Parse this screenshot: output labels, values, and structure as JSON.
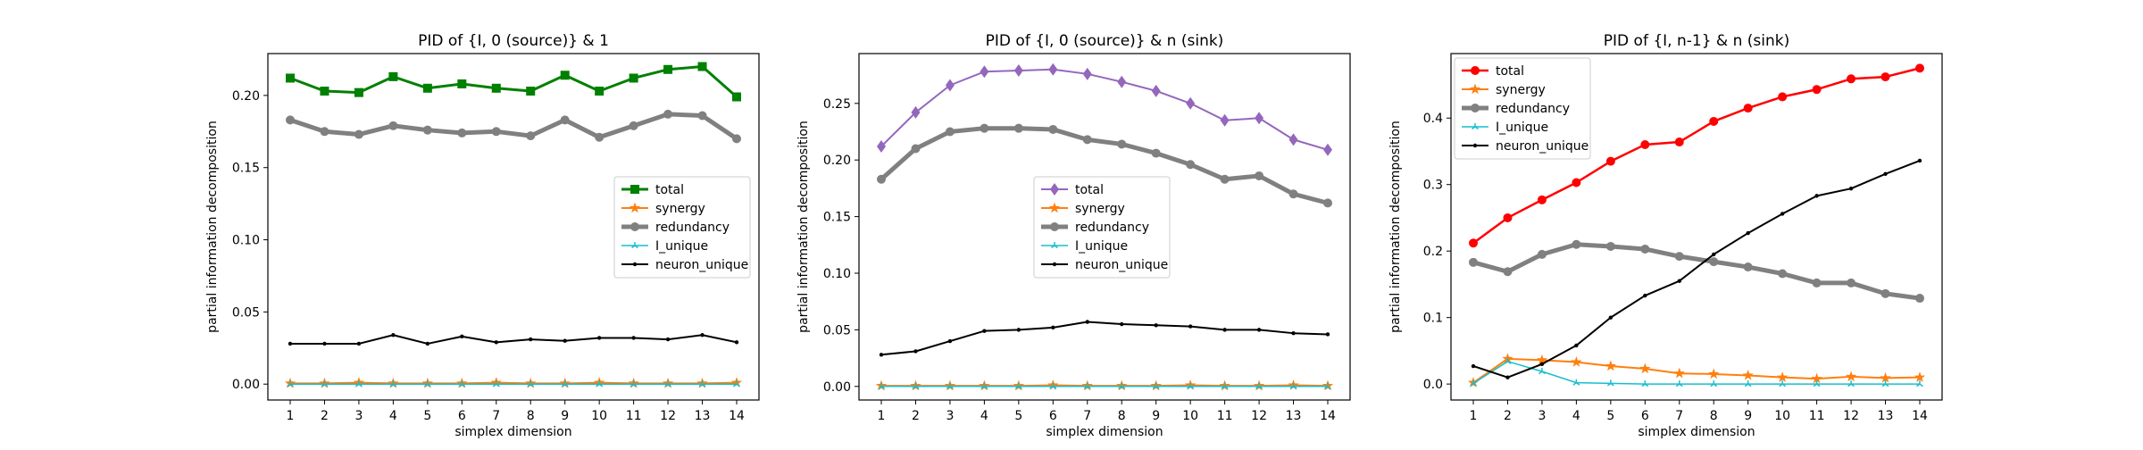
{
  "chart_data": [
    {
      "type": "line",
      "title": "PID of {I, 0 (source)} & 1",
      "xlabel": "simplex dimension",
      "ylabel": "partial information decomposition",
      "x": [
        1,
        2,
        3,
        4,
        5,
        6,
        7,
        8,
        9,
        10,
        11,
        12,
        13,
        14
      ],
      "xticks": [
        "1",
        "2",
        "3",
        "4",
        "5",
        "6",
        "7",
        "8",
        "9",
        "10",
        "11",
        "12",
        "13",
        "14"
      ],
      "ylim": [
        -0.011,
        0.229
      ],
      "yticks": [
        0.0,
        0.05,
        0.1,
        0.15,
        0.2
      ],
      "ytick_labels": [
        "0.00",
        "0.05",
        "0.10",
        "0.15",
        "0.20"
      ],
      "legend_position": "center-right",
      "series": [
        {
          "name": "total",
          "color": "#008000",
          "marker": "square",
          "line_width": 3,
          "values": [
            0.212,
            0.203,
            0.202,
            0.213,
            0.205,
            0.208,
            0.205,
            0.203,
            0.214,
            0.203,
            0.212,
            0.218,
            0.22,
            0.199
          ]
        },
        {
          "name": "synergy",
          "color": "#ff7f0e",
          "marker": "star",
          "line_width": 2,
          "values": [
            0.0005,
            0.0005,
            0.001,
            0.0005,
            0.0005,
            0.0005,
            0.001,
            0.0005,
            0.0005,
            0.001,
            0.0005,
            0.0005,
            0.0005,
            0.001
          ]
        },
        {
          "name": "redundancy",
          "color": "#808080",
          "marker": "circle",
          "line_width": 5,
          "values": [
            0.183,
            0.175,
            0.173,
            0.179,
            0.176,
            0.174,
            0.175,
            0.172,
            0.183,
            0.171,
            0.179,
            0.187,
            0.186,
            0.17
          ]
        },
        {
          "name": "I_unique",
          "color": "#17becf",
          "marker": "tri",
          "line_width": 1.5,
          "values": [
            0.0,
            0.0,
            0.0,
            0.0,
            0.0,
            0.0,
            0.0,
            0.0,
            0.0,
            0.0,
            0.0,
            0.0,
            0.0,
            0.0
          ]
        },
        {
          "name": "neuron_unique",
          "color": "#000000",
          "marker": "dot",
          "line_width": 2,
          "values": [
            0.028,
            0.028,
            0.028,
            0.034,
            0.028,
            0.033,
            0.029,
            0.031,
            0.03,
            0.032,
            0.032,
            0.031,
            0.034,
            0.029
          ]
        }
      ]
    },
    {
      "type": "line",
      "title": "PID of {I, 0 (source)} & n (sink)",
      "xlabel": "simplex dimension",
      "ylabel": "partial information decomposition",
      "x": [
        1,
        2,
        3,
        4,
        5,
        6,
        7,
        8,
        9,
        10,
        11,
        12,
        13,
        14
      ],
      "xticks": [
        "1",
        "2",
        "3",
        "4",
        "5",
        "6",
        "7",
        "8",
        "9",
        "10",
        "11",
        "12",
        "13",
        "14"
      ],
      "ylim": [
        -0.012,
        0.294
      ],
      "yticks": [
        0.0,
        0.05,
        0.1,
        0.15,
        0.2,
        0.25
      ],
      "ytick_labels": [
        "0.00",
        "0.05",
        "0.10",
        "0.15",
        "0.20",
        "0.25"
      ],
      "legend_position": "center",
      "series": [
        {
          "name": "total",
          "color": "#9467bd",
          "marker": "diamond",
          "line_width": 2,
          "values": [
            0.212,
            0.242,
            0.266,
            0.278,
            0.279,
            0.28,
            0.276,
            0.269,
            0.261,
            0.25,
            0.235,
            0.237,
            0.218,
            0.209
          ]
        },
        {
          "name": "synergy",
          "color": "#ff7f0e",
          "marker": "star",
          "line_width": 2,
          "values": [
            0.0005,
            0.0005,
            0.0005,
            0.0005,
            0.0005,
            0.001,
            0.0005,
            0.0005,
            0.0005,
            0.001,
            0.0005,
            0.0005,
            0.001,
            0.0005
          ]
        },
        {
          "name": "redundancy",
          "color": "#808080",
          "marker": "circle",
          "line_width": 5,
          "values": [
            0.183,
            0.21,
            0.225,
            0.228,
            0.228,
            0.227,
            0.218,
            0.214,
            0.206,
            0.196,
            0.183,
            0.186,
            0.17,
            0.162
          ]
        },
        {
          "name": "I_unique",
          "color": "#17becf",
          "marker": "tri",
          "line_width": 1.5,
          "values": [
            0.0,
            0.0,
            0.0,
            0.0,
            0.0,
            0.0,
            0.0,
            0.0,
            0.0,
            0.0,
            0.0,
            0.0,
            0.0,
            0.0
          ]
        },
        {
          "name": "neuron_unique",
          "color": "#000000",
          "marker": "dot",
          "line_width": 2,
          "values": [
            0.028,
            0.031,
            0.04,
            0.049,
            0.05,
            0.052,
            0.057,
            0.055,
            0.054,
            0.053,
            0.05,
            0.05,
            0.047,
            0.046
          ]
        }
      ]
    },
    {
      "type": "line",
      "title": "PID of {I, n-1} & n (sink)",
      "xlabel": "simplex dimension",
      "ylabel": "partial information decomposition",
      "x": [
        1,
        2,
        3,
        4,
        5,
        6,
        7,
        8,
        9,
        10,
        11,
        12,
        13,
        14
      ],
      "xticks": [
        "1",
        "2",
        "3",
        "4",
        "5",
        "6",
        "7",
        "8",
        "9",
        "10",
        "11",
        "12",
        "13",
        "14"
      ],
      "ylim": [
        -0.024,
        0.497
      ],
      "yticks": [
        0.0,
        0.1,
        0.2,
        0.3,
        0.4
      ],
      "ytick_labels": [
        "0.0",
        "0.1",
        "0.2",
        "0.3",
        "0.4"
      ],
      "legend_position": "upper-left",
      "series": [
        {
          "name": "total",
          "color": "#ff0000",
          "marker": "circle",
          "line_width": 2.5,
          "values": [
            0.212,
            0.25,
            0.277,
            0.303,
            0.335,
            0.36,
            0.364,
            0.395,
            0.415,
            0.432,
            0.443,
            0.459,
            0.462,
            0.475
          ]
        },
        {
          "name": "synergy",
          "color": "#ff7f0e",
          "marker": "star",
          "line_width": 2,
          "values": [
            0.002,
            0.038,
            0.036,
            0.033,
            0.027,
            0.023,
            0.016,
            0.015,
            0.013,
            0.01,
            0.008,
            0.011,
            0.009,
            0.01
          ]
        },
        {
          "name": "redundancy",
          "color": "#808080",
          "marker": "circle",
          "line_width": 5,
          "values": [
            0.183,
            0.169,
            0.195,
            0.21,
            0.207,
            0.203,
            0.192,
            0.184,
            0.176,
            0.166,
            0.152,
            0.152,
            0.136,
            0.129
          ]
        },
        {
          "name": "I_unique",
          "color": "#17becf",
          "marker": "tri",
          "line_width": 1.5,
          "values": [
            0.001,
            0.034,
            0.019,
            0.002,
            0.001,
            0.0,
            0.0,
            0.0,
            0.0,
            0.0,
            0.0,
            0.0,
            0.0,
            0.0
          ]
        },
        {
          "name": "neuron_unique",
          "color": "#000000",
          "marker": "dot",
          "line_width": 2,
          "values": [
            0.027,
            0.01,
            0.03,
            0.058,
            0.1,
            0.133,
            0.155,
            0.195,
            0.227,
            0.256,
            0.283,
            0.294,
            0.316,
            0.336
          ]
        }
      ]
    }
  ]
}
